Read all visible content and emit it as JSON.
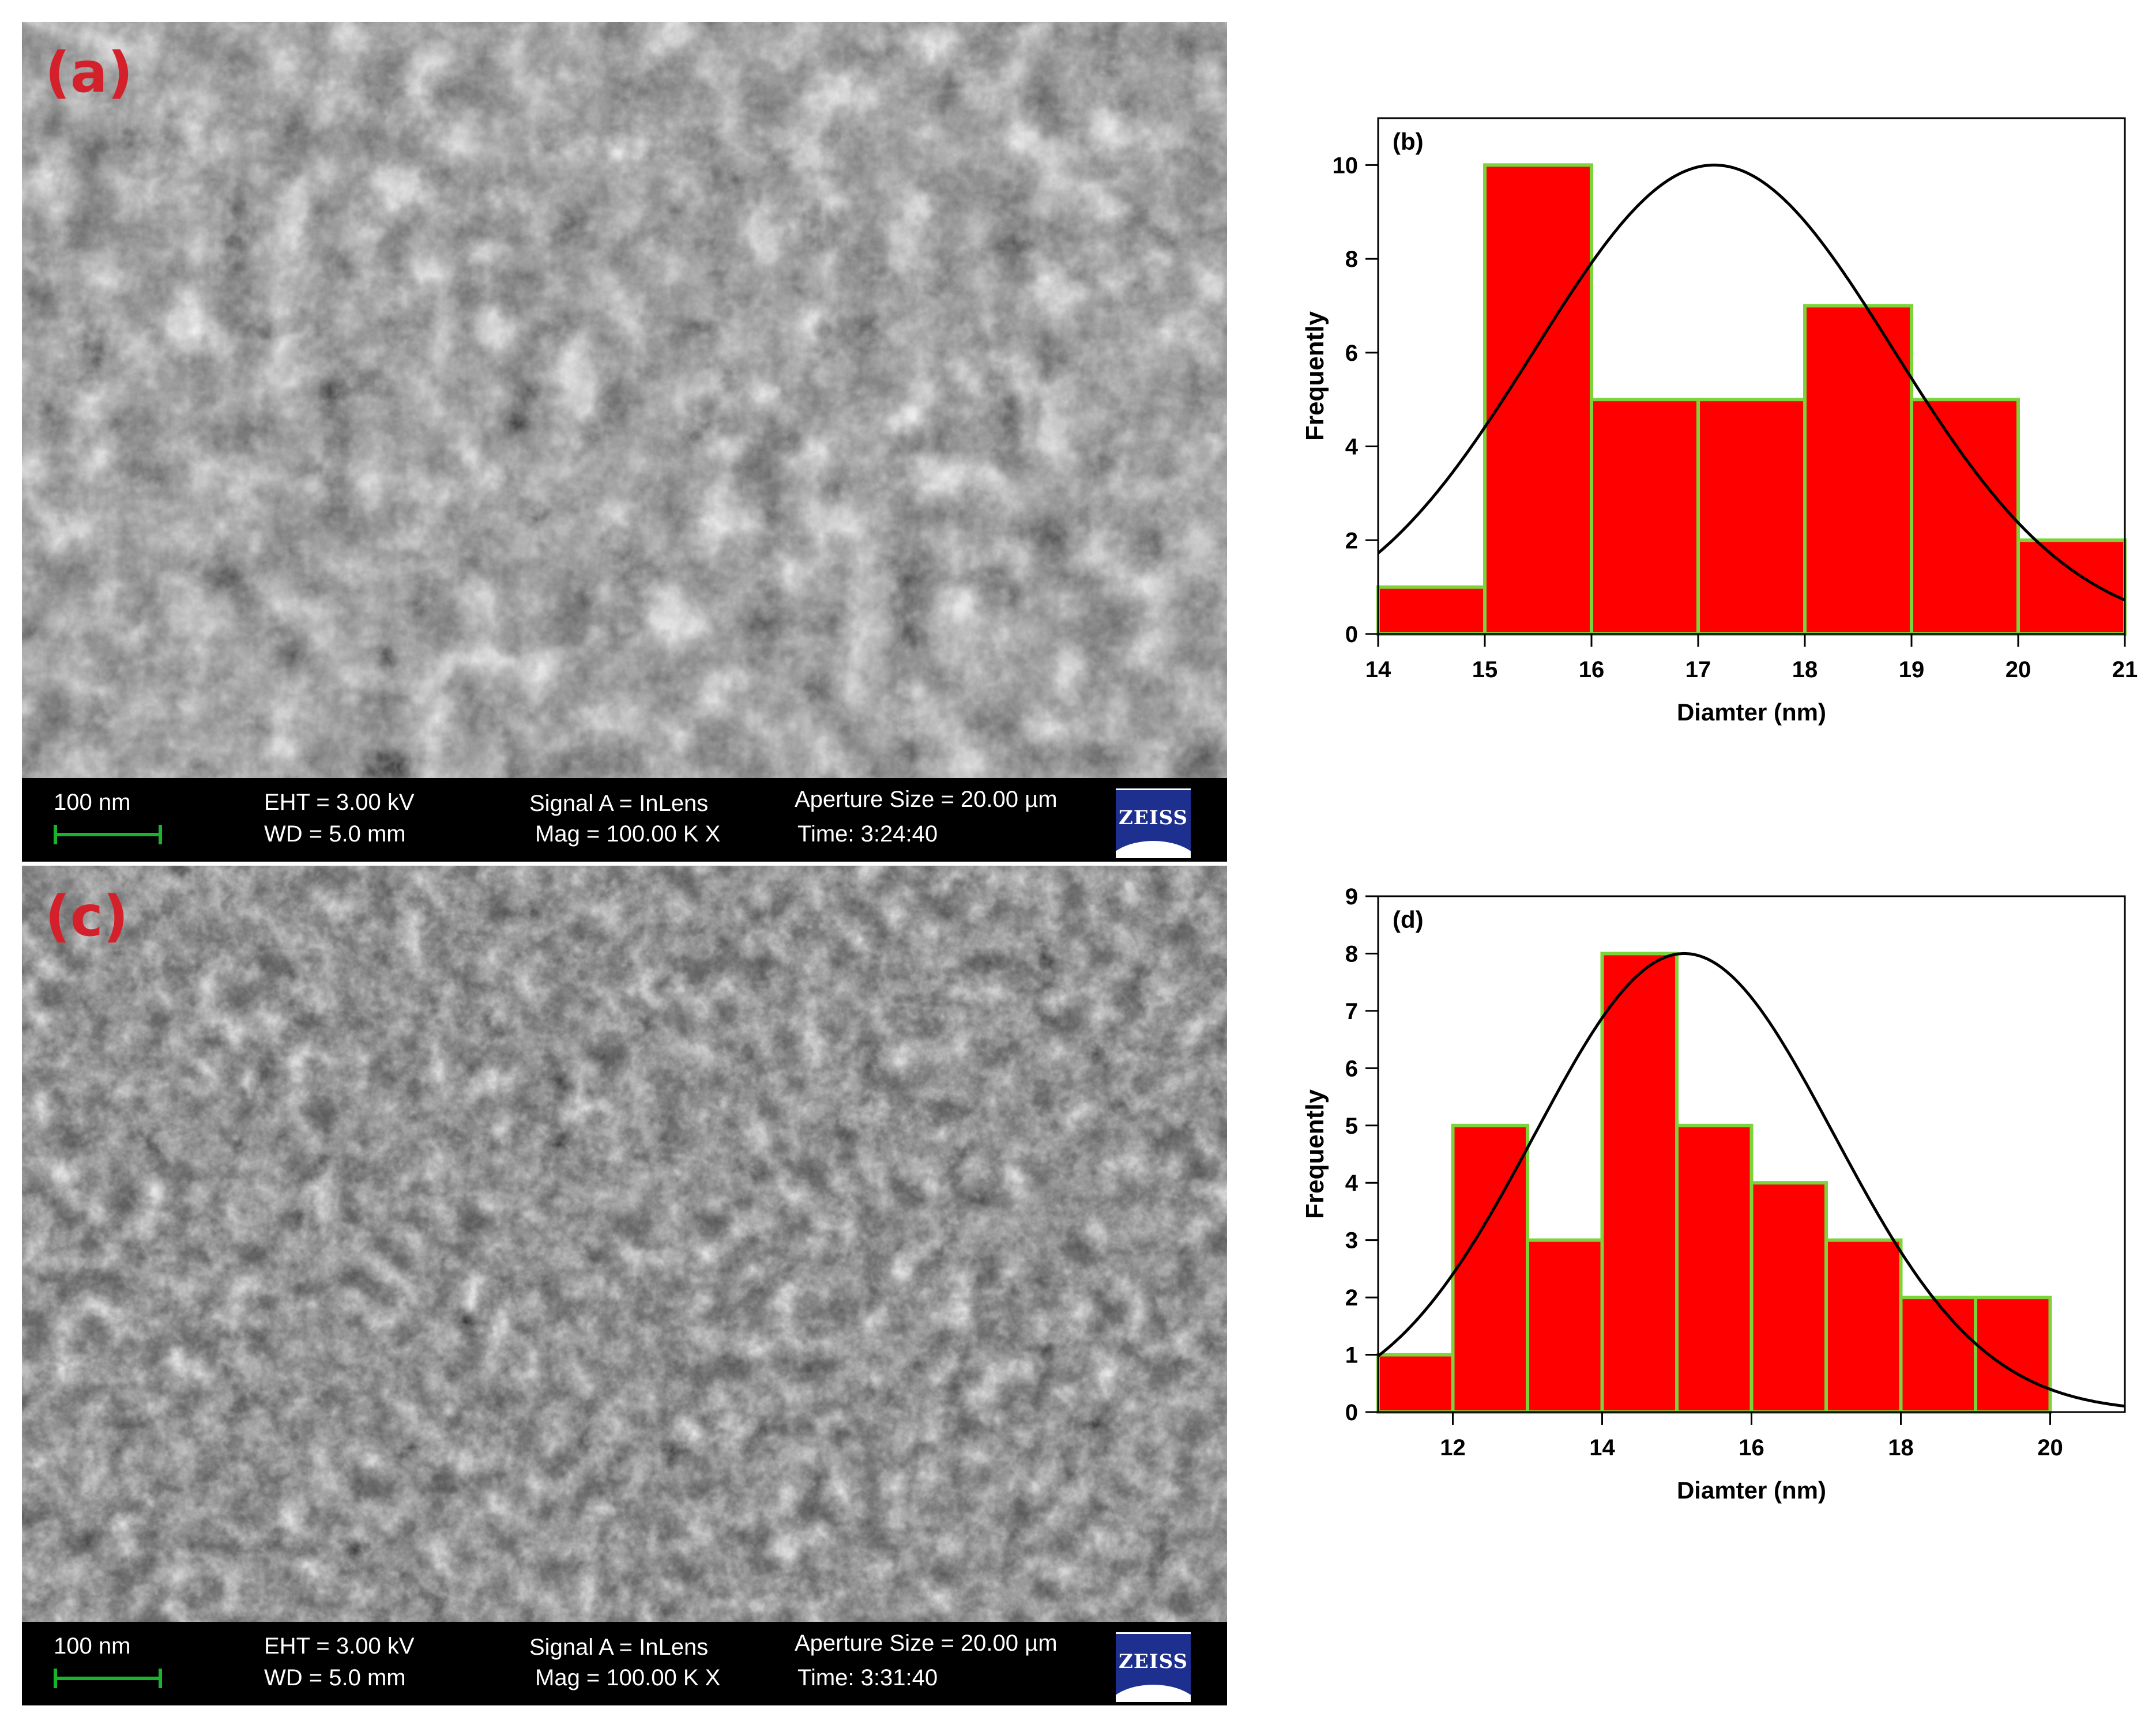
{
  "panels": {
    "a": {
      "letter": "(a)"
    },
    "c": {
      "letter": "(c)"
    }
  },
  "sem_info": {
    "a": {
      "scale": "100 nm",
      "eht": "EHT =  3.00 kV",
      "wd": "WD =  5.0 mm",
      "signal": "Signal A = InLens",
      "mag": "Mag =  100.00 K X",
      "aperture": "Aperture Size = 20.00 µm",
      "time": "Time: 3:24:40",
      "logo": "ZEISS"
    },
    "c": {
      "scale": "100 nm",
      "eht": "EHT =  3.00 kV",
      "wd": "WD =  5.0 mm",
      "signal": "Signal A = InLens",
      "mag": "Mag =  100.00 K X",
      "aperture": "Aperture Size = 20.00 µm",
      "time": "Time: 3:31:40",
      "logo": "ZEISS"
    }
  },
  "chart_data": [
    {
      "type": "bar",
      "panel_label": "(b)",
      "xlabel": "Diamter (nm)",
      "ylabel": "Frequently",
      "xlim": [
        14,
        21
      ],
      "ylim": [
        0,
        11
      ],
      "xticks": [
        14,
        15,
        16,
        17,
        18,
        19,
        20,
        21
      ],
      "yticks": [
        0,
        2,
        4,
        6,
        8,
        10
      ],
      "bins": [
        {
          "from": 14,
          "to": 15,
          "value": 1
        },
        {
          "from": 15,
          "to": 16,
          "value": 10
        },
        {
          "from": 16,
          "to": 17,
          "value": 5
        },
        {
          "from": 17,
          "to": 18,
          "value": 5
        },
        {
          "from": 18,
          "to": 19,
          "value": 7
        },
        {
          "from": 19,
          "to": 20,
          "value": 5
        },
        {
          "from": 20,
          "to": 21,
          "value": 2
        }
      ],
      "fit": {
        "type": "gaussian",
        "peak_x": 17.15,
        "peak_y": 10,
        "sigma": 1.68
      },
      "bar_color": "#ff0000",
      "bar_edge_color": "#7cd43a",
      "fit_color": "#000000"
    },
    {
      "type": "bar",
      "panel_label": "(d)",
      "xlabel": "Diamter (nm)",
      "ylabel": "Frequently",
      "xlim": [
        11,
        21
      ],
      "ylim": [
        0,
        9
      ],
      "xticks": [
        12,
        14,
        16,
        18,
        20
      ],
      "yticks": [
        0,
        1,
        2,
        3,
        4,
        5,
        6,
        7,
        8,
        9
      ],
      "bins": [
        {
          "from": 11,
          "to": 12,
          "value": 1
        },
        {
          "from": 12,
          "to": 13,
          "value": 5
        },
        {
          "from": 13,
          "to": 14,
          "value": 3
        },
        {
          "from": 14,
          "to": 15,
          "value": 8
        },
        {
          "from": 15,
          "to": 16,
          "value": 5
        },
        {
          "from": 16,
          "to": 17,
          "value": 4
        },
        {
          "from": 17,
          "to": 18,
          "value": 3
        },
        {
          "from": 18,
          "to": 19,
          "value": 2
        },
        {
          "from": 19,
          "to": 20,
          "value": 2
        }
      ],
      "fit": {
        "type": "gaussian",
        "peak_x": 15.1,
        "peak_y": 8,
        "sigma": 2.0
      },
      "bar_color": "#ff0000",
      "bar_edge_color": "#7cd43a",
      "fit_color": "#000000"
    }
  ]
}
